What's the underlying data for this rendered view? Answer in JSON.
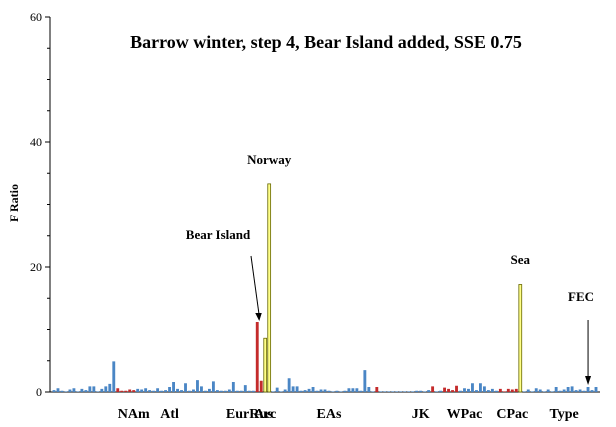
{
  "chart_data": {
    "type": "bar",
    "title": "Barrow winter, step 4, Bear Island added, SSE 0.75",
    "ylabel": "F Ratio",
    "xlabel": "",
    "ylim": [
      0,
      60
    ],
    "y_ticks": [
      0,
      20,
      40,
      60
    ],
    "colors": {
      "default": "#4a86c5",
      "red": "#c42b2b",
      "yellow": "#ffff88",
      "yellow_stroke": "#666600",
      "axis": "#000000"
    },
    "group_labels": [
      "NAm",
      "Atl",
      "EurRus",
      "Arc",
      "EAs",
      "JK",
      "WPac",
      "CPac",
      "Type"
    ],
    "annotations": [
      "Norway",
      "Bear Island",
      "Sea",
      "FEC"
    ],
    "values": [
      0.3,
      0.6,
      0.2,
      0.1,
      0.4,
      0.6,
      0.1,
      0.5,
      0.3,
      0.9,
      0.9,
      0.1,
      0.5,
      0.9,
      1.3,
      4.9,
      0.6,
      0.2,
      0.2,
      0.4,
      0.3,
      0.5,
      0.4,
      0.6,
      0.3,
      0.2,
      0.6,
      0.2,
      0.3,
      0.8,
      1.6,
      0.5,
      0.3,
      1.4,
      0.2,
      0.4,
      1.9,
      0.9,
      0.2,
      0.5,
      1.7,
      0.3,
      0.2,
      0.2,
      0.4,
      1.6,
      0.2,
      0.2,
      1.1,
      0.2,
      0.2,
      11.2,
      1.8,
      8.6,
      33.3,
      0.1,
      0.7,
      0.1,
      0.4,
      2.2,
      0.9,
      0.9,
      0.2,
      0.3,
      0.5,
      0.8,
      0.2,
      0.4,
      0.4,
      0.2,
      0.1,
      0.2,
      0.1,
      0.2,
      0.6,
      0.6,
      0.6,
      0.2,
      3.5,
      0.8,
      0.1,
      0.8,
      0.1,
      0.1,
      0.1,
      0.1,
      0.1,
      0.1,
      0.1,
      0.1,
      0.1,
      0.2,
      0.2,
      0.1,
      0.3,
      0.9,
      0.1,
      0.2,
      0.7,
      0.5,
      0.3,
      1.0,
      0.2,
      0.6,
      0.5,
      1.4,
      0.3,
      1.4,
      0.9,
      0.3,
      0.5,
      0.2,
      0.5,
      0.1,
      0.5,
      0.4,
      0.5,
      17.2,
      0.1,
      0.4,
      0.1,
      0.6,
      0.4,
      0.1,
      0.4,
      0.1,
      0.8,
      0.2,
      0.4,
      0.8,
      0.9,
      0.3,
      0.4,
      0.2,
      0.8,
      0.3,
      0.8
    ],
    "bar_colors": [
      "default",
      "default",
      "default",
      "default",
      "default",
      "default",
      "default",
      "default",
      "default",
      "default",
      "default",
      "default",
      "default",
      "default",
      "default",
      "default",
      "red",
      "red",
      "red",
      "red",
      "red",
      "default",
      "default",
      "default",
      "default",
      "default",
      "default",
      "default",
      "default",
      "default",
      "default",
      "default",
      "default",
      "default",
      "default",
      "default",
      "default",
      "default",
      "default",
      "default",
      "default",
      "default",
      "default",
      "default",
      "default",
      "default",
      "default",
      "default",
      "default",
      "default",
      "default",
      "red",
      "red",
      "yellow",
      "yellow",
      "default",
      "default",
      "default",
      "default",
      "default",
      "default",
      "default",
      "default",
      "default",
      "default",
      "default",
      "default",
      "default",
      "default",
      "default",
      "default",
      "default",
      "default",
      "default",
      "default",
      "default",
      "default",
      "default",
      "default",
      "default",
      "default",
      "red",
      "default",
      "default",
      "default",
      "default",
      "default",
      "default",
      "default",
      "default",
      "default",
      "default",
      "default",
      "default",
      "default",
      "red",
      "default",
      "default",
      "red",
      "red",
      "red",
      "red",
      "default",
      "default",
      "default",
      "default",
      "default",
      "default",
      "default",
      "default",
      "default",
      "default",
      "red",
      "red",
      "red",
      "red",
      "red",
      "yellow",
      "default",
      "default",
      "default",
      "default",
      "default",
      "default",
      "default",
      "default",
      "default",
      "default",
      "default",
      "default",
      "default",
      "default",
      "default",
      "default",
      "default",
      "default"
    ],
    "grid": false,
    "legend": "none"
  }
}
